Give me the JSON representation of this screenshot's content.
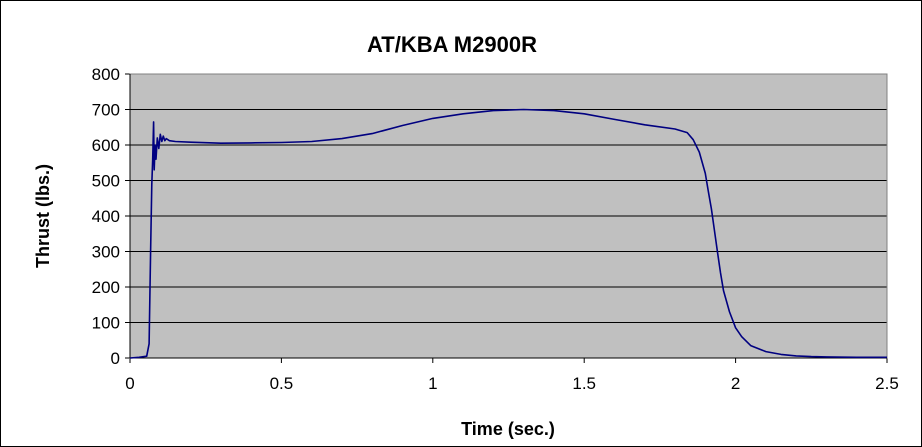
{
  "chart_data": {
    "type": "line",
    "title": "AT/KBA M2900R",
    "xlabel": "Time (sec.)",
    "ylabel": "Thrust (lbs.)",
    "xlim": [
      0,
      2.5
    ],
    "ylim": [
      0,
      800
    ],
    "x_ticks": [
      "0",
      "0.5",
      "1",
      "1.5",
      "2",
      "2.5"
    ],
    "y_ticks": [
      "0",
      "100",
      "200",
      "300",
      "400",
      "500",
      "600",
      "700",
      "800"
    ],
    "grid": true,
    "legend": "none",
    "plot_background": "#c0c0c0",
    "line_color": "#000080",
    "series": [
      {
        "x": [
          0.0,
          0.03,
          0.055,
          0.063,
          0.068,
          0.072,
          0.075,
          0.078,
          0.08,
          0.083,
          0.086,
          0.09,
          0.095,
          0.1,
          0.105,
          0.11,
          0.115,
          0.12,
          0.13,
          0.15,
          0.2,
          0.3,
          0.4,
          0.5,
          0.6,
          0.7,
          0.8,
          0.9,
          1.0,
          1.1,
          1.2,
          1.3,
          1.4,
          1.5,
          1.6,
          1.7,
          1.8,
          1.84,
          1.86,
          1.88,
          1.9,
          1.91,
          1.92,
          1.93,
          1.94,
          1.95,
          1.96,
          1.98,
          2.0,
          2.02,
          2.05,
          2.1,
          2.15,
          2.2,
          2.25,
          2.3,
          2.4,
          2.5
        ],
        "y": [
          0,
          2,
          5,
          40,
          300,
          490,
          560,
          665,
          530,
          600,
          560,
          620,
          590,
          630,
          610,
          625,
          612,
          618,
          612,
          610,
          608,
          605,
          606,
          607,
          610,
          618,
          632,
          655,
          675,
          688,
          697,
          700,
          697,
          688,
          672,
          657,
          645,
          635,
          615,
          580,
          520,
          470,
          420,
          360,
          300,
          240,
          190,
          130,
          85,
          60,
          35,
          18,
          10,
          6,
          4,
          3,
          2,
          2
        ]
      }
    ]
  }
}
